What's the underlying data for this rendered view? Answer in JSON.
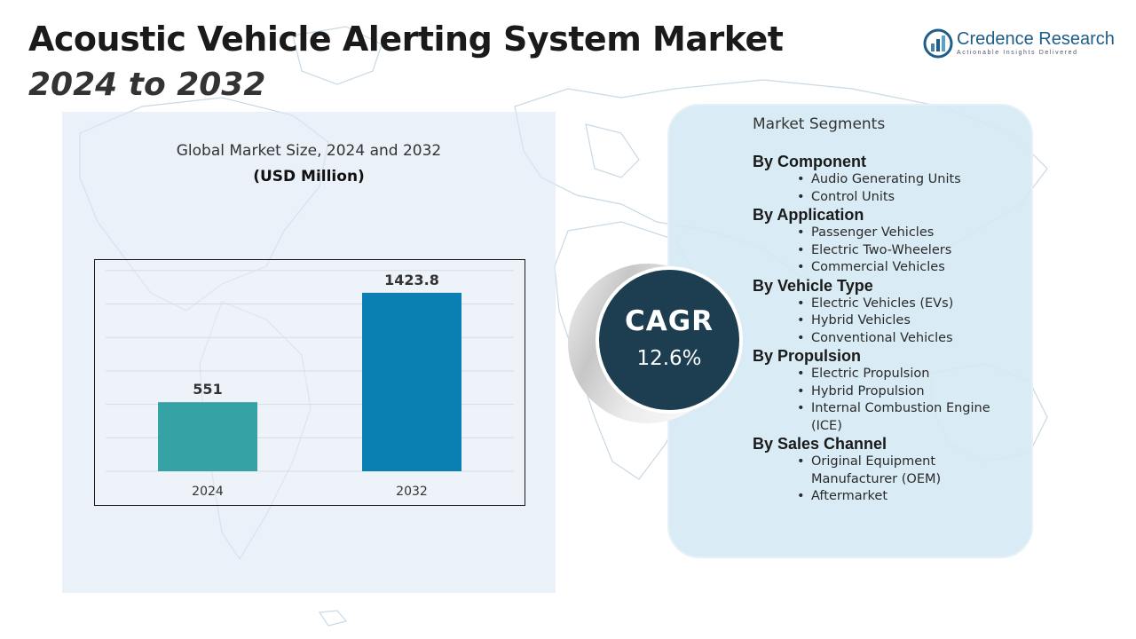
{
  "header": {
    "title": "Acoustic Vehicle Alerting System Market",
    "subtitle": "2024 to 2032"
  },
  "logo": {
    "name": "Credence Research",
    "tagline": "Actionable Insights Delivered",
    "icon": "bar-chart-logo-icon"
  },
  "chart": {
    "heading": "Global Market Size, 2024 and 2032",
    "unit": "(USD Million)"
  },
  "chart_data": {
    "type": "bar",
    "categories": [
      "2024",
      "2032"
    ],
    "values": [
      551,
      1423.8
    ],
    "value_labels": [
      "551",
      "1423.8"
    ],
    "title": "Global Market Size, 2024 and 2032",
    "ylabel": "(USD Million)",
    "ylim": [
      0,
      1600
    ],
    "grid": true,
    "colors": [
      "#35a3a6",
      "#0a80b2"
    ]
  },
  "cagr": {
    "label": "CAGR",
    "value": "12.6%"
  },
  "segments": {
    "title": "Market Segments",
    "groups": [
      {
        "name": "By Component",
        "items": [
          "Audio Generating Units",
          "Control Units"
        ]
      },
      {
        "name": "By Application",
        "items": [
          "Passenger Vehicles",
          "Electric Two-Wheelers",
          "Commercial Vehicles"
        ]
      },
      {
        "name": "By Vehicle Type",
        "items": [
          "Electric Vehicles (EVs)",
          "Hybrid Vehicles",
          "Conventional Vehicles"
        ]
      },
      {
        "name": "By Propulsion",
        "items": [
          "Electric Propulsion",
          "Hybrid Propulsion",
          "Internal Combustion Engine (ICE)"
        ]
      },
      {
        "name": "By Sales Channel",
        "items": [
          "Original Equipment Manufacturer (OEM)",
          "Aftermarket"
        ]
      }
    ]
  },
  "colors": {
    "title": "#1a1a1a",
    "brand": "#1f5d8a",
    "cagr_circle": "#1c3e50",
    "segment_panel": "#d6e9f3",
    "chart_panel": "#dde9f3"
  }
}
